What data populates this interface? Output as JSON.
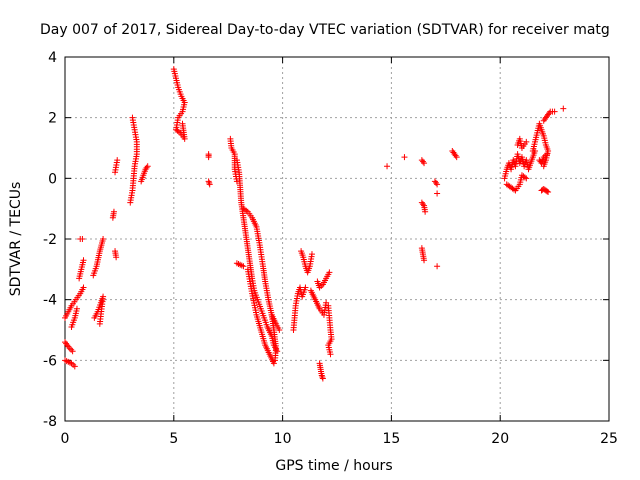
{
  "chart_data": {
    "type": "scatter",
    "title": "Day 007 of 2017, Sidereal Day-to-day VTEC variation (SDTVAR) for receiver matg",
    "xlabel": "GPS time / hours",
    "ylabel": "SDTVAR / TECUs",
    "xlim": [
      0,
      25
    ],
    "ylim": [
      -8,
      4
    ],
    "xticks": [
      0,
      5,
      10,
      15,
      20,
      25
    ],
    "yticks": [
      -8,
      -6,
      -4,
      -2,
      0,
      2,
      4
    ],
    "xtick_labels": [
      "0",
      "5",
      "10",
      "15",
      "20",
      "25"
    ],
    "ytick_labels": [
      "-8",
      "-6",
      "-4",
      "-2",
      "0",
      "2",
      "4"
    ],
    "grid": true,
    "marker": "+",
    "colors": {
      "series": "#ff0000",
      "grid": "#a0a0a0",
      "axis": "#000000"
    },
    "series": [
      {
        "name": "SDTVAR",
        "segments": [
          [
            [
              0.0,
              -4.6
            ],
            [
              0.15,
              -4.4
            ],
            [
              0.3,
              -4.2
            ],
            [
              0.5,
              -4.0
            ],
            [
              0.7,
              -3.8
            ],
            [
              0.85,
              -3.6
            ]
          ],
          [
            [
              0.0,
              -5.4
            ],
            [
              0.15,
              -5.55
            ],
            [
              0.35,
              -5.7
            ]
          ],
          [
            [
              0.0,
              -6.0
            ],
            [
              0.15,
              -6.05
            ],
            [
              0.3,
              -6.1
            ],
            [
              0.45,
              -6.2
            ]
          ],
          [
            [
              0.3,
              -4.9
            ],
            [
              0.45,
              -4.6
            ],
            [
              0.55,
              -4.3
            ]
          ],
          [
            [
              0.65,
              -3.3
            ],
            [
              0.75,
              -3.0
            ],
            [
              0.85,
              -2.7
            ]
          ],
          [
            [
              0.7,
              -2.0
            ],
            [
              0.8,
              -2.0
            ]
          ],
          [
            [
              1.3,
              -3.2
            ],
            [
              1.45,
              -2.9
            ],
            [
              1.6,
              -2.4
            ],
            [
              1.75,
              -2.0
            ]
          ],
          [
            [
              1.35,
              -4.6
            ],
            [
              1.5,
              -4.4
            ],
            [
              1.65,
              -4.1
            ],
            [
              1.75,
              -3.9
            ],
            [
              1.6,
              -4.8
            ]
          ],
          [
            [
              2.2,
              -1.3
            ],
            [
              2.25,
              -1.1
            ]
          ],
          [
            [
              2.3,
              0.2
            ],
            [
              2.4,
              0.6
            ]
          ],
          [
            [
              2.3,
              -2.4
            ],
            [
              2.35,
              -2.6
            ]
          ],
          [
            [
              3.0,
              -0.8
            ],
            [
              3.1,
              -0.4
            ],
            [
              3.15,
              0.0
            ],
            [
              3.2,
              0.4
            ],
            [
              3.3,
              0.8
            ],
            [
              3.3,
              1.2
            ],
            [
              3.2,
              1.6
            ],
            [
              3.1,
              2.0
            ]
          ],
          [
            [
              3.5,
              -0.1
            ],
            [
              3.6,
              0.1
            ],
            [
              3.7,
              0.3
            ],
            [
              3.8,
              0.4
            ]
          ],
          [
            [
              5.0,
              3.6
            ],
            [
              5.1,
              3.3
            ],
            [
              5.2,
              3.0
            ],
            [
              5.35,
              2.7
            ],
            [
              5.5,
              2.5
            ],
            [
              5.4,
              2.2
            ],
            [
              5.2,
              2.0
            ],
            [
              5.1,
              1.6
            ],
            [
              5.3,
              1.5
            ],
            [
              5.5,
              1.3
            ],
            [
              5.4,
              1.8
            ]
          ],
          [
            [
              6.6,
              0.8
            ],
            [
              6.6,
              0.7
            ]
          ],
          [
            [
              6.6,
              -0.1
            ],
            [
              6.65,
              -0.2
            ]
          ],
          [
            [
              7.6,
              1.3
            ],
            [
              7.65,
              1.0
            ],
            [
              7.8,
              0.8
            ],
            [
              7.8,
              0.3
            ],
            [
              7.9,
              -0.1
            ]
          ],
          [
            [
              7.9,
              0.6
            ],
            [
              8.0,
              0.2
            ],
            [
              8.05,
              -0.3
            ],
            [
              8.1,
              -0.8
            ],
            [
              8.2,
              -1.3
            ],
            [
              8.3,
              -1.8
            ],
            [
              8.4,
              -2.3
            ],
            [
              8.5,
              -2.8
            ],
            [
              8.6,
              -3.3
            ],
            [
              8.7,
              -3.7
            ],
            [
              8.85,
              -4.0
            ],
            [
              9.0,
              -4.3
            ],
            [
              9.15,
              -4.6
            ],
            [
              9.3,
              -4.9
            ],
            [
              9.5,
              -5.2
            ],
            [
              9.6,
              -5.5
            ],
            [
              9.75,
              -5.7
            ]
          ],
          [
            [
              8.2,
              -1.0
            ],
            [
              8.4,
              -1.1
            ],
            [
              8.6,
              -1.3
            ],
            [
              8.8,
              -1.6
            ],
            [
              8.95,
              -2.2
            ],
            [
              9.1,
              -2.9
            ],
            [
              9.2,
              -3.4
            ],
            [
              9.35,
              -4.0
            ],
            [
              9.5,
              -4.5
            ],
            [
              9.6,
              -5.0
            ],
            [
              9.7,
              -5.6
            ],
            [
              9.65,
              -6.0
            ]
          ],
          [
            [
              7.9,
              -2.8
            ],
            [
              8.05,
              -2.85
            ],
            [
              8.2,
              -2.9
            ]
          ],
          [
            [
              8.4,
              -3.0
            ],
            [
              8.6,
              -3.8
            ],
            [
              8.8,
              -4.5
            ],
            [
              9.0,
              -5.0
            ],
            [
              9.2,
              -5.5
            ],
            [
              9.4,
              -5.8
            ],
            [
              9.6,
              -6.1
            ]
          ],
          [
            [
              9.5,
              -4.5
            ],
            [
              9.7,
              -4.8
            ],
            [
              9.85,
              -5.0
            ]
          ],
          [
            [
              10.5,
              -5.0
            ],
            [
              10.55,
              -4.6
            ],
            [
              10.6,
              -4.2
            ],
            [
              10.7,
              -3.8
            ],
            [
              10.8,
              -3.6
            ],
            [
              10.9,
              -3.9
            ],
            [
              11.05,
              -3.6
            ]
          ],
          [
            [
              10.85,
              -2.4
            ],
            [
              10.95,
              -2.6
            ],
            [
              11.05,
              -2.9
            ],
            [
              11.15,
              -3.1
            ],
            [
              11.25,
              -2.9
            ],
            [
              11.35,
              -2.5
            ]
          ],
          [
            [
              11.3,
              -3.7
            ],
            [
              11.5,
              -4.0
            ],
            [
              11.7,
              -4.3
            ],
            [
              11.9,
              -4.5
            ],
            [
              12.0,
              -4.1
            ]
          ],
          [
            [
              11.6,
              -3.4
            ],
            [
              11.7,
              -3.6
            ],
            [
              11.85,
              -3.5
            ],
            [
              12.0,
              -3.3
            ],
            [
              12.15,
              -3.1
            ]
          ],
          [
            [
              11.7,
              -6.1
            ],
            [
              11.75,
              -6.3
            ],
            [
              11.8,
              -6.5
            ],
            [
              11.85,
              -6.6
            ]
          ],
          [
            [
              12.1,
              -4.2
            ],
            [
              12.15,
              -4.6
            ],
            [
              12.2,
              -5.0
            ],
            [
              12.25,
              -5.3
            ],
            [
              12.1,
              -5.5
            ],
            [
              12.2,
              -5.8
            ]
          ],
          [
            [
              14.8,
              0.4
            ]
          ],
          [
            [
              15.6,
              0.7
            ]
          ],
          [
            [
              16.4,
              0.6
            ],
            [
              16.5,
              0.5
            ]
          ],
          [
            [
              16.4,
              -0.8
            ],
            [
              16.5,
              -0.9
            ],
            [
              16.55,
              -1.1
            ]
          ],
          [
            [
              16.4,
              -2.3
            ],
            [
              16.45,
              -2.5
            ],
            [
              16.5,
              -2.7
            ]
          ],
          [
            [
              17.0,
              -0.1
            ],
            [
              17.1,
              -0.2
            ]
          ],
          [
            [
              17.1,
              -0.5
            ]
          ],
          [
            [
              17.1,
              -2.9
            ]
          ],
          [
            [
              17.8,
              0.9
            ],
            [
              17.9,
              0.8
            ],
            [
              18.0,
              0.7
            ]
          ],
          [
            [
              20.2,
              0.0
            ],
            [
              20.3,
              0.3
            ],
            [
              20.4,
              0.5
            ],
            [
              20.5,
              0.3
            ],
            [
              20.6,
              0.6
            ],
            [
              20.7,
              0.4
            ],
            [
              20.8,
              0.8
            ],
            [
              20.9,
              0.5
            ],
            [
              21.0,
              0.7
            ],
            [
              21.1,
              0.4
            ],
            [
              21.2,
              0.6
            ],
            [
              21.3,
              0.3
            ],
            [
              21.4,
              0.5
            ],
            [
              21.5,
              0.7
            ],
            [
              21.6,
              0.9
            ]
          ],
          [
            [
              20.3,
              -0.2
            ],
            [
              20.5,
              -0.3
            ],
            [
              20.7,
              -0.4
            ],
            [
              20.9,
              -0.2
            ],
            [
              21.0,
              0.1
            ],
            [
              21.2,
              0.0
            ]
          ],
          [
            [
              20.8,
              1.1
            ],
            [
              20.9,
              1.3
            ],
            [
              21.0,
              1.0
            ],
            [
              21.2,
              1.2
            ]
          ],
          [
            [
              21.5,
              0.9
            ],
            [
              21.6,
              1.2
            ],
            [
              21.7,
              1.5
            ],
            [
              21.8,
              1.8
            ],
            [
              21.9,
              1.6
            ],
            [
              22.0,
              1.4
            ],
            [
              22.1,
              1.1
            ],
            [
              22.2,
              0.9
            ],
            [
              22.1,
              0.6
            ],
            [
              22.0,
              0.4
            ]
          ],
          [
            [
              22.0,
              1.9
            ],
            [
              22.1,
              2.0
            ],
            [
              22.2,
              2.1
            ],
            [
              22.3,
              2.2
            ],
            [
              22.4,
              2.2
            ],
            [
              22.5,
              2.2
            ]
          ],
          [
            [
              21.8,
              0.6
            ],
            [
              21.9,
              0.5
            ],
            [
              22.0,
              0.7
            ],
            [
              22.15,
              0.8
            ]
          ],
          [
            [
              21.9,
              -0.4
            ],
            [
              22.0,
              -0.35
            ],
            [
              22.1,
              -0.4
            ],
            [
              22.2,
              -0.45
            ]
          ],
          [
            [
              22.9,
              2.3
            ]
          ]
        ]
      }
    ]
  }
}
